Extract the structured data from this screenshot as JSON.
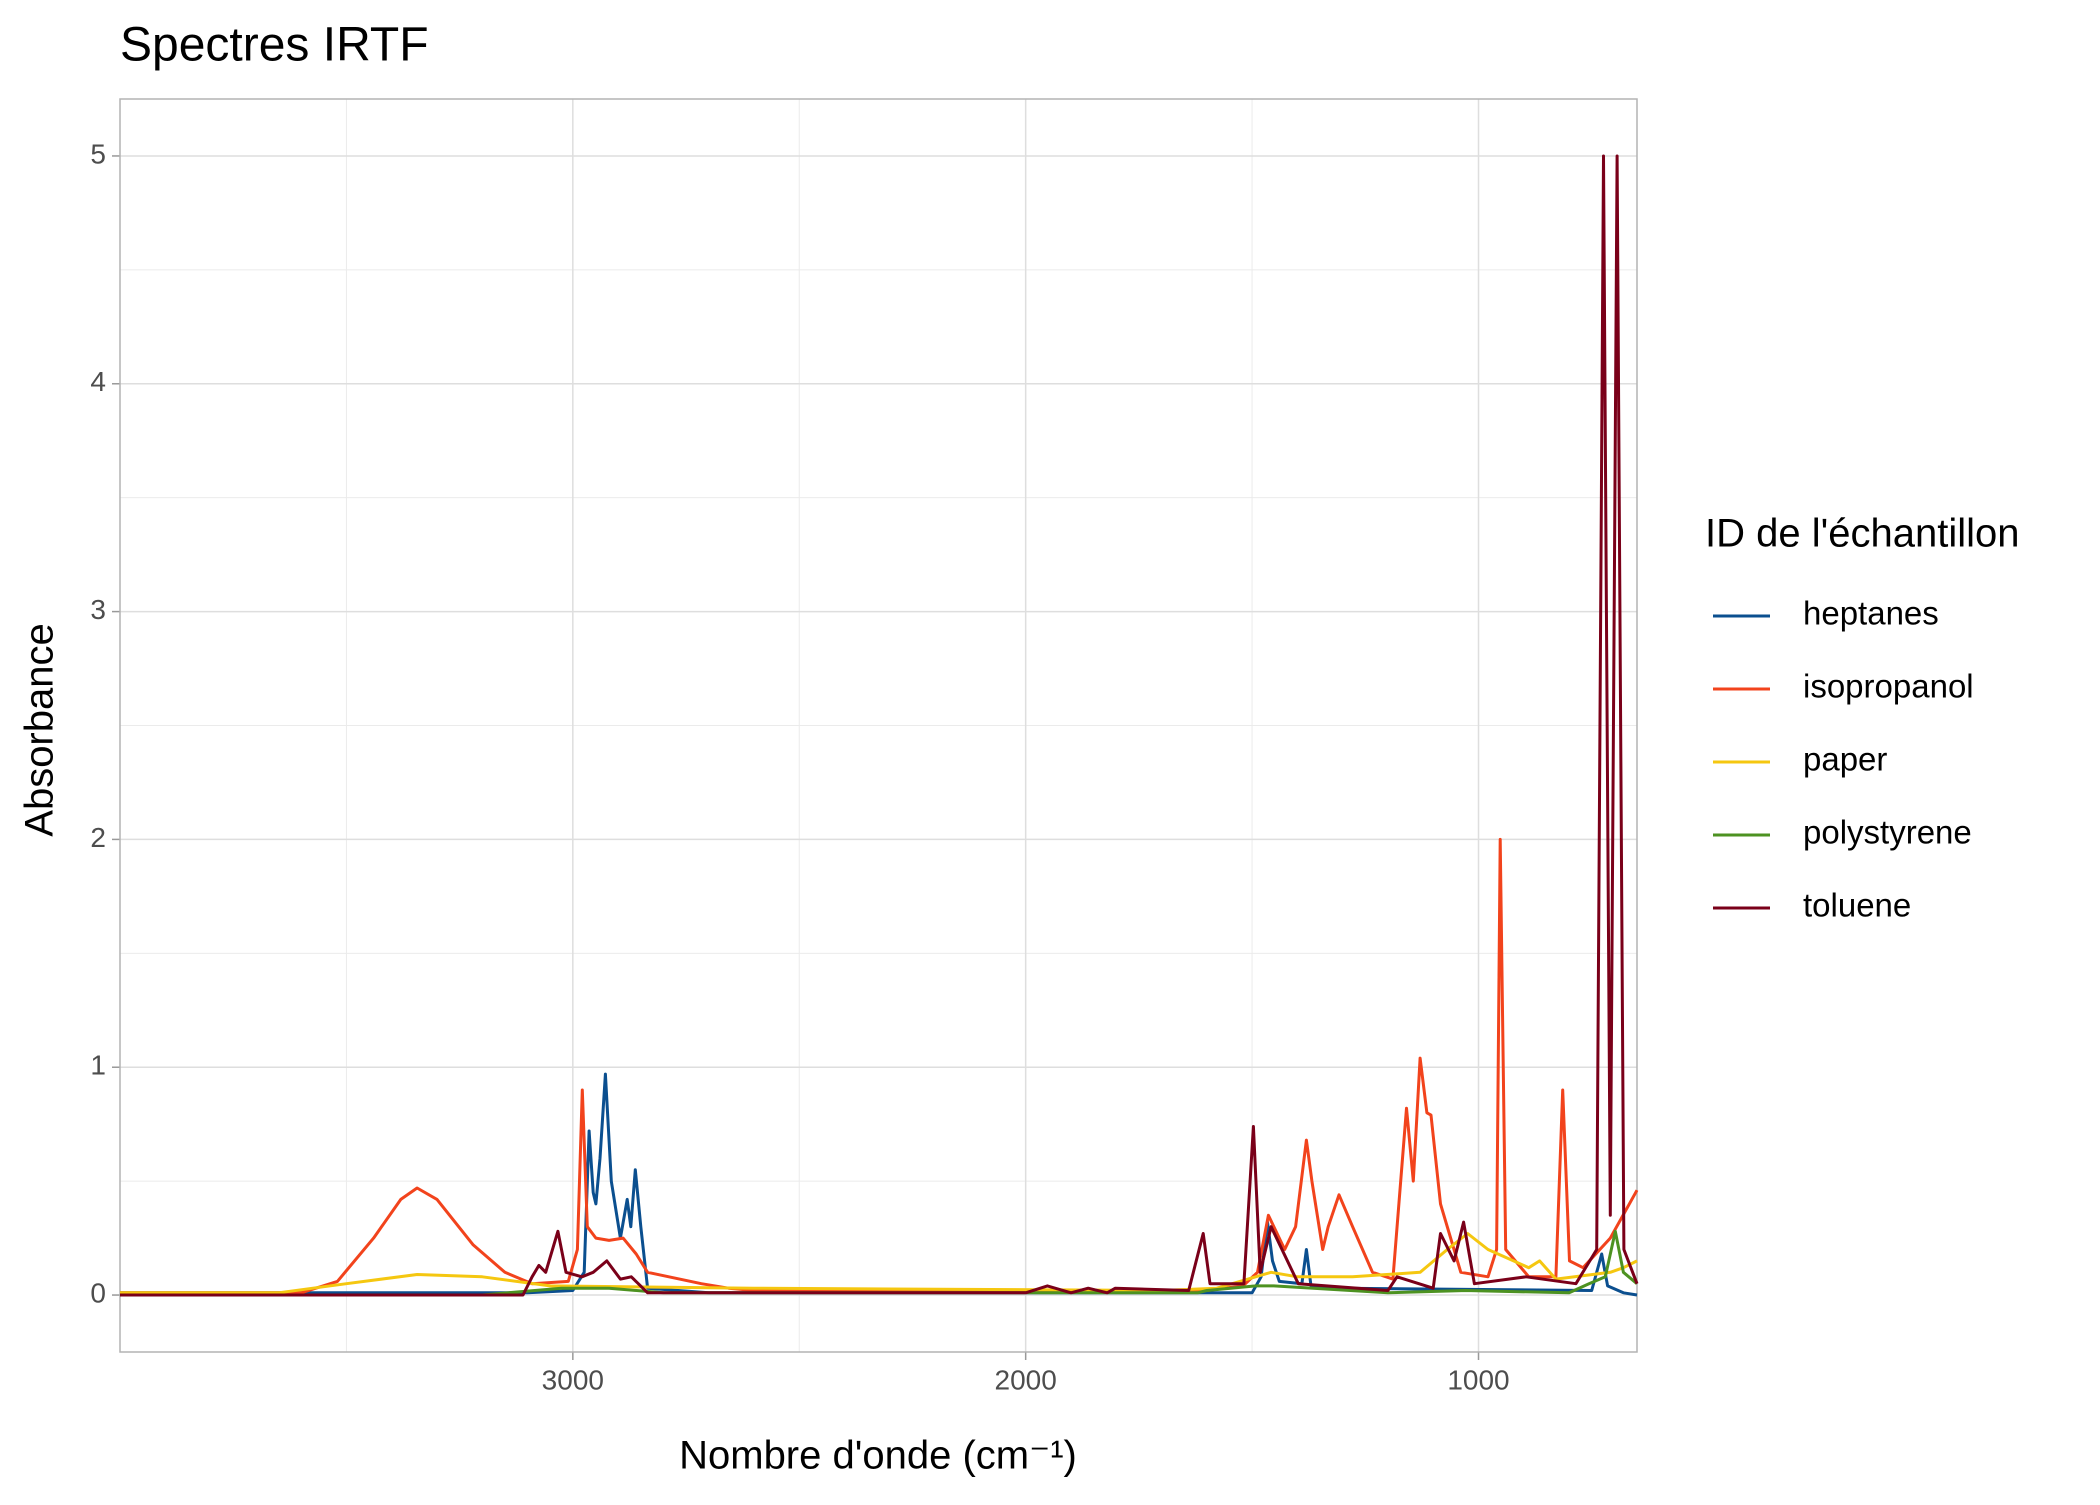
{
  "chart_data": {
    "type": "line",
    "title": "Spectres IRTF",
    "x_label": "Nombre d'onde (cm⁻¹)",
    "y_label": "Absorbance",
    "legend_title": "ID de l'échantillon",
    "legend_position": "right",
    "grid": true,
    "xlim": [
      4000,
      650
    ],
    "xticks": [
      3000,
      2000,
      1000
    ],
    "xminor": [
      3500,
      2500,
      1500
    ],
    "ylim": [
      -0.25,
      5.25
    ],
    "yticks": [
      0,
      1,
      2,
      3,
      4,
      5
    ],
    "yminor": [
      0.5,
      1.5,
      2.5,
      3.5,
      4.5
    ],
    "series": [
      {
        "name": "heptanes",
        "color": "#0b4f8f",
        "x": [
          4000,
          3100,
          3000,
          2975,
          2964,
          2955,
          2949,
          2940,
          2928,
          2915,
          2895,
          2880,
          2872,
          2862,
          2850,
          2835,
          2700,
          1500,
          1480,
          1466,
          1455,
          1440,
          1390,
          1380,
          1370,
          1300,
          750,
          728,
          715,
          680,
          650
        ],
        "values": [
          0.01,
          0.01,
          0.02,
          0.1,
          0.72,
          0.45,
          0.4,
          0.6,
          0.97,
          0.5,
          0.25,
          0.42,
          0.3,
          0.55,
          0.3,
          0.03,
          0.01,
          0.01,
          0.08,
          0.32,
          0.15,
          0.06,
          0.05,
          0.2,
          0.04,
          0.03,
          0.02,
          0.18,
          0.04,
          0.01,
          0.0
        ]
      },
      {
        "name": "isopropanol",
        "color": "#f2431c",
        "x": [
          4000,
          3600,
          3520,
          3440,
          3380,
          3344,
          3300,
          3220,
          3150,
          3090,
          3010,
          2990,
          2979,
          2968,
          2949,
          2920,
          2889,
          2860,
          2835,
          2716,
          2656,
          2600,
          1600,
          1520,
          1488,
          1464,
          1428,
          1404,
          1380,
          1368,
          1344,
          1332,
          1308,
          1278,
          1234,
          1189,
          1159,
          1144,
          1129,
          1114,
          1105,
          1084,
          1039,
          979,
          960,
          952,
          940,
          889,
          829,
          814,
          799,
          769,
          709,
          650
        ],
        "values": [
          0.01,
          0.01,
          0.06,
          0.25,
          0.42,
          0.47,
          0.42,
          0.22,
          0.1,
          0.05,
          0.06,
          0.2,
          0.9,
          0.3,
          0.25,
          0.24,
          0.25,
          0.18,
          0.1,
          0.05,
          0.03,
          0.02,
          0.02,
          0.04,
          0.1,
          0.35,
          0.2,
          0.3,
          0.68,
          0.5,
          0.2,
          0.3,
          0.44,
          0.3,
          0.1,
          0.07,
          0.82,
          0.5,
          1.04,
          0.8,
          0.79,
          0.4,
          0.1,
          0.08,
          0.2,
          2.0,
          0.2,
          0.08,
          0.08,
          0.9,
          0.15,
          0.12,
          0.25,
          0.46
        ]
      },
      {
        "name": "paper",
        "color": "#f5c710",
        "x": [
          4000,
          3650,
          3500,
          3344,
          3200,
          3050,
          2600,
          1700,
          1578,
          1458,
          1400,
          1278,
          1129,
          1069,
          1024,
          979,
          889,
          865,
          829,
          709,
          680,
          650
        ],
        "values": [
          0.01,
          0.01,
          0.05,
          0.09,
          0.08,
          0.04,
          0.03,
          0.02,
          0.03,
          0.1,
          0.08,
          0.08,
          0.1,
          0.2,
          0.27,
          0.2,
          0.12,
          0.15,
          0.07,
          0.1,
          0.12,
          0.15
        ]
      },
      {
        "name": "polystyrene",
        "color": "#4d9221",
        "x": [
          4000,
          3200,
          3025,
          2920,
          2800,
          1620,
          1600,
          1492,
          1452,
          1200,
          1028,
          800,
          756,
          720,
          698,
          680,
          650
        ],
        "values": [
          0.0,
          0.0,
          0.03,
          0.03,
          0.01,
          0.01,
          0.02,
          0.04,
          0.04,
          0.01,
          0.02,
          0.01,
          0.05,
          0.08,
          0.28,
          0.1,
          0.05
        ]
      },
      {
        "name": "toluene",
        "color": "#7a0019",
        "x": [
          4000,
          3110,
          3090,
          3075,
          3060,
          3033,
          3015,
          2980,
          2955,
          2925,
          2895,
          2871,
          2835,
          2000,
          1952,
          1900,
          1862,
          1820,
          1802,
          1640,
          1608,
          1593,
          1518,
          1497,
          1482,
          1458,
          1398,
          1200,
          1180,
          1100,
          1084,
          1054,
          1033,
          1009,
          895,
          785,
          739,
          724,
          709,
          694,
          679,
          650
        ],
        "values": [
          0.0,
          0.0,
          0.08,
          0.13,
          0.1,
          0.28,
          0.1,
          0.08,
          0.1,
          0.15,
          0.07,
          0.08,
          0.01,
          0.01,
          0.04,
          0.01,
          0.03,
          0.01,
          0.03,
          0.02,
          0.27,
          0.05,
          0.05,
          0.74,
          0.1,
          0.3,
          0.05,
          0.02,
          0.08,
          0.03,
          0.27,
          0.15,
          0.32,
          0.05,
          0.08,
          0.05,
          0.2,
          5.0,
          0.35,
          5.0,
          0.2,
          0.05
        ]
      }
    ]
  }
}
